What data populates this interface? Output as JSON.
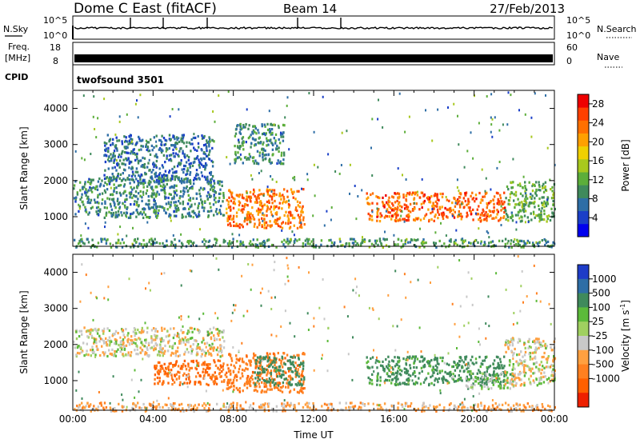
{
  "header": {
    "title": "Dome C East (fitACF)",
    "beam": "Beam 14",
    "date": "27/Feb/2013"
  },
  "strips": {
    "nsky": {
      "label": "N.Sky",
      "ticks": [
        "10^5",
        "10^0"
      ]
    },
    "nsearch": {
      "label": "N.Search",
      "ticks": [
        "10^5",
        "10^0"
      ]
    },
    "freq": {
      "label_top": "Freq.",
      "label_bottom": "[MHz]",
      "ticks": [
        18,
        8
      ]
    },
    "nave": {
      "label": "Nave",
      "ticks": [
        60,
        0
      ]
    },
    "cpid": {
      "label": "CPID",
      "value": "twofsound 3501"
    }
  },
  "chart_data": [
    {
      "type": "heatmap",
      "quantity": "Power",
      "ylabel": "Slant Range [km]",
      "xlabel": "",
      "ylim": [
        180,
        4500
      ],
      "xlim": [
        0,
        24
      ],
      "yticks": [
        1000,
        2000,
        3000,
        4000
      ],
      "colorbar": {
        "label": "Power [dB]",
        "ticks": [
          4,
          8,
          12,
          16,
          20,
          24,
          28
        ],
        "range": [
          0,
          30
        ],
        "colors": [
          "#0000ee",
          "#1a3fc8",
          "#2e6ea6",
          "#3f8a5c",
          "#5cae3a",
          "#a8c81e",
          "#f0d000",
          "#ffa000",
          "#ff7000",
          "#ff4000",
          "#ee0000"
        ]
      },
      "regions": [
        {
          "t0": 0.0,
          "t1": 7.5,
          "r0": 1000,
          "r1": 2100,
          "level": 9
        },
        {
          "t0": 1.5,
          "t1": 7.0,
          "r0": 2000,
          "r1": 3300,
          "level": 7
        },
        {
          "t0": 7.6,
          "t1": 11.5,
          "r0": 700,
          "r1": 1800,
          "level": 23
        },
        {
          "t0": 8.0,
          "t1": 10.5,
          "r0": 2500,
          "r1": 3600,
          "level": 9
        },
        {
          "t0": 14.6,
          "t1": 21.5,
          "r0": 900,
          "r1": 1700,
          "level": 24
        },
        {
          "t0": 21.5,
          "t1": 24.0,
          "r0": 900,
          "r1": 2000,
          "level": 12
        },
        {
          "t0": 0.0,
          "t1": 24.0,
          "r0": 180,
          "r1": 420,
          "level": 10
        }
      ]
    },
    {
      "type": "heatmap",
      "quantity": "Velocity",
      "ylabel": "Slant Range [km]",
      "xlabel": "Time UT",
      "ylim": [
        180,
        4500
      ],
      "xlim": [
        0,
        24
      ],
      "xticks": [
        "00:00",
        "04:00",
        "08:00",
        "12:00",
        "16:00",
        "20:00",
        "00:00"
      ],
      "yticks": [
        1000,
        2000,
        3000,
        4000
      ],
      "colorbar": {
        "label": "Velocity [m s^-1]",
        "ticks": [
          "1000",
          "500",
          "100",
          "25",
          "-25",
          "-100",
          "-500",
          "-1000"
        ],
        "colors": [
          "#1e3cc8",
          "#2e6ea6",
          "#3f8a5c",
          "#5cba3a",
          "#a0d060",
          "#c8c8c8",
          "#ffa040",
          "#ff8020",
          "#ff6000",
          "#ee2000"
        ]
      },
      "regions": [
        {
          "t0": 0.0,
          "t1": 7.5,
          "r0": 1700,
          "r1": 2500,
          "level": 0
        },
        {
          "t0": 4.0,
          "t1": 7.6,
          "r0": 900,
          "r1": 1600,
          "level": -300
        },
        {
          "t0": 7.6,
          "t1": 11.5,
          "r0": 700,
          "r1": 1800,
          "level": -250
        },
        {
          "t0": 9.0,
          "t1": 11.5,
          "r0": 900,
          "r1": 1700,
          "level": 200
        },
        {
          "t0": 14.6,
          "t1": 21.5,
          "r0": 900,
          "r1": 1700,
          "level": 150
        },
        {
          "t0": 19.5,
          "t1": 22.0,
          "r0": 800,
          "r1": 1300,
          "level": 60
        },
        {
          "t0": 21.5,
          "t1": 24.0,
          "r0": 900,
          "r1": 2200,
          "level": 0
        },
        {
          "t0": 0.0,
          "t1": 24.0,
          "r0": 180,
          "r1": 420,
          "level": -60
        }
      ]
    }
  ]
}
